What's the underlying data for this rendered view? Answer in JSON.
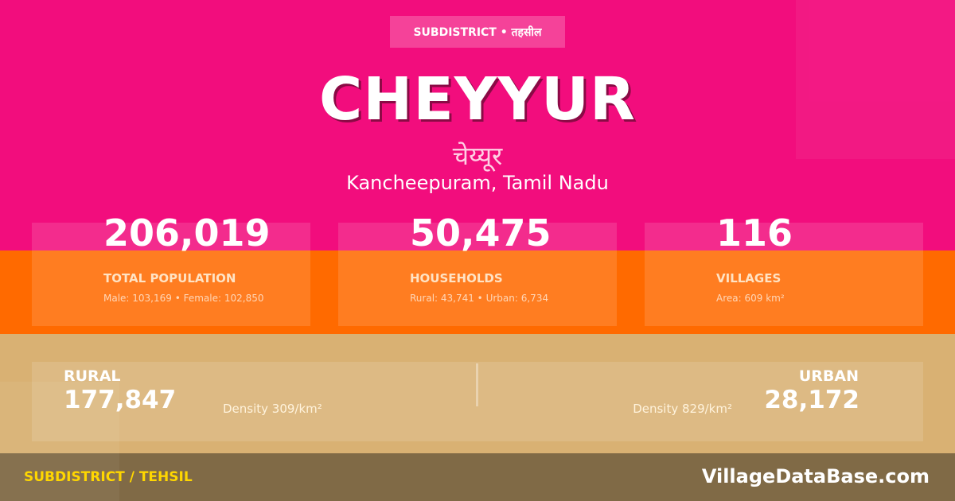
{
  "colors": {
    "pink": "#f20d7d",
    "orange": "#ff6a00",
    "tan": "#d9b173",
    "footer": "#806a46",
    "accent_yellow": "#ffd700"
  },
  "header": {
    "badge": "SUBDISTRICT • तहसील",
    "title": "CHEYYUR",
    "title_hindi": "चेय्यूर",
    "location": "Kancheepuram, Tamil Nadu"
  },
  "stats": [
    {
      "value": "206,019",
      "label": "TOTAL POPULATION",
      "detail": "Male: 103,169 • Female: 102,850"
    },
    {
      "value": "50,475",
      "label": "HOUSEHOLDS",
      "detail": "Rural: 43,741 • Urban: 6,734"
    },
    {
      "value": "116",
      "label": "VILLAGES",
      "detail": "Area: 609 km²"
    }
  ],
  "rural": {
    "label": "RURAL",
    "value": "177,847",
    "density": "Density 309/km²"
  },
  "urban": {
    "label": "URBAN",
    "value": "28,172",
    "density": "Density 829/km²"
  },
  "footer": {
    "left": "SUBDISTRICT / TEHSIL",
    "brand": "VillageDataBase.com"
  }
}
